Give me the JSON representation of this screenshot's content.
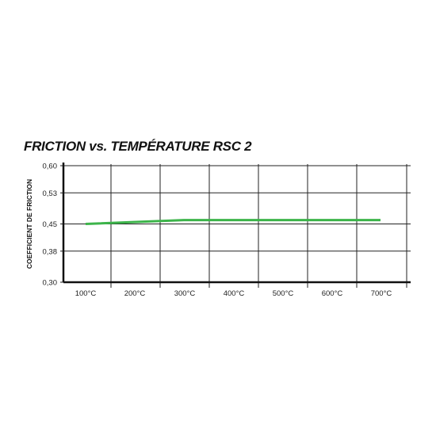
{
  "chart_data": {
    "type": "line",
    "title": "FRICTION vs. TEMPÉRATURE RSC 2",
    "xlabel": "",
    "ylabel": "COEFFICIENT DE FRICTION",
    "categories": [
      "100°C",
      "200°C",
      "300°C",
      "400°C",
      "500°C",
      "600°C",
      "700°C"
    ],
    "y_ticks": [
      "0,30",
      "0,38",
      "0,45",
      "0,53",
      "0,60"
    ],
    "ylim": [
      0.3,
      0.6
    ],
    "grid": true,
    "series": [
      {
        "color": "#3cb44a",
        "x": [
          100,
          300,
          700
        ],
        "values": [
          0.45,
          0.46,
          0.46
        ]
      }
    ]
  }
}
